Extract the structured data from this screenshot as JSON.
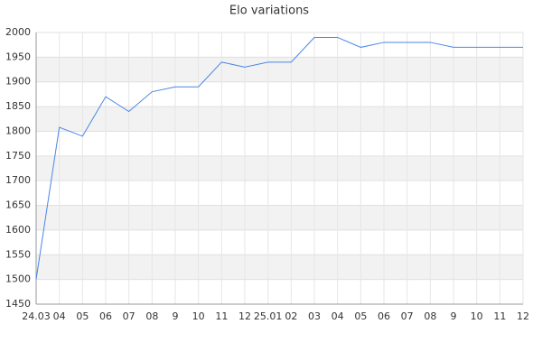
{
  "chart_data": {
    "type": "line",
    "title": "Elo variations",
    "categories": [
      "24.03",
      "04",
      "05",
      "06",
      "07",
      "08",
      "9",
      "10",
      "11",
      "12",
      "25.01",
      "02",
      "03",
      "04",
      "05",
      "06",
      "07",
      "08",
      "9",
      "10",
      "11",
      "12"
    ],
    "series": [
      {
        "name": "Elo",
        "color": "#4a86e8",
        "values": [
          1500,
          1808,
          1790,
          1870,
          1840,
          1880,
          1890,
          1890,
          1940,
          1930,
          1940,
          1940,
          1990,
          1990,
          1970,
          1980,
          1980,
          1980,
          1970,
          1970,
          1970,
          1970
        ]
      }
    ],
    "ylim": [
      1450,
      2000
    ],
    "yticks": [
      1450,
      1500,
      1550,
      1600,
      1650,
      1700,
      1750,
      1800,
      1850,
      1900,
      1950,
      2000
    ],
    "grid": true
  }
}
